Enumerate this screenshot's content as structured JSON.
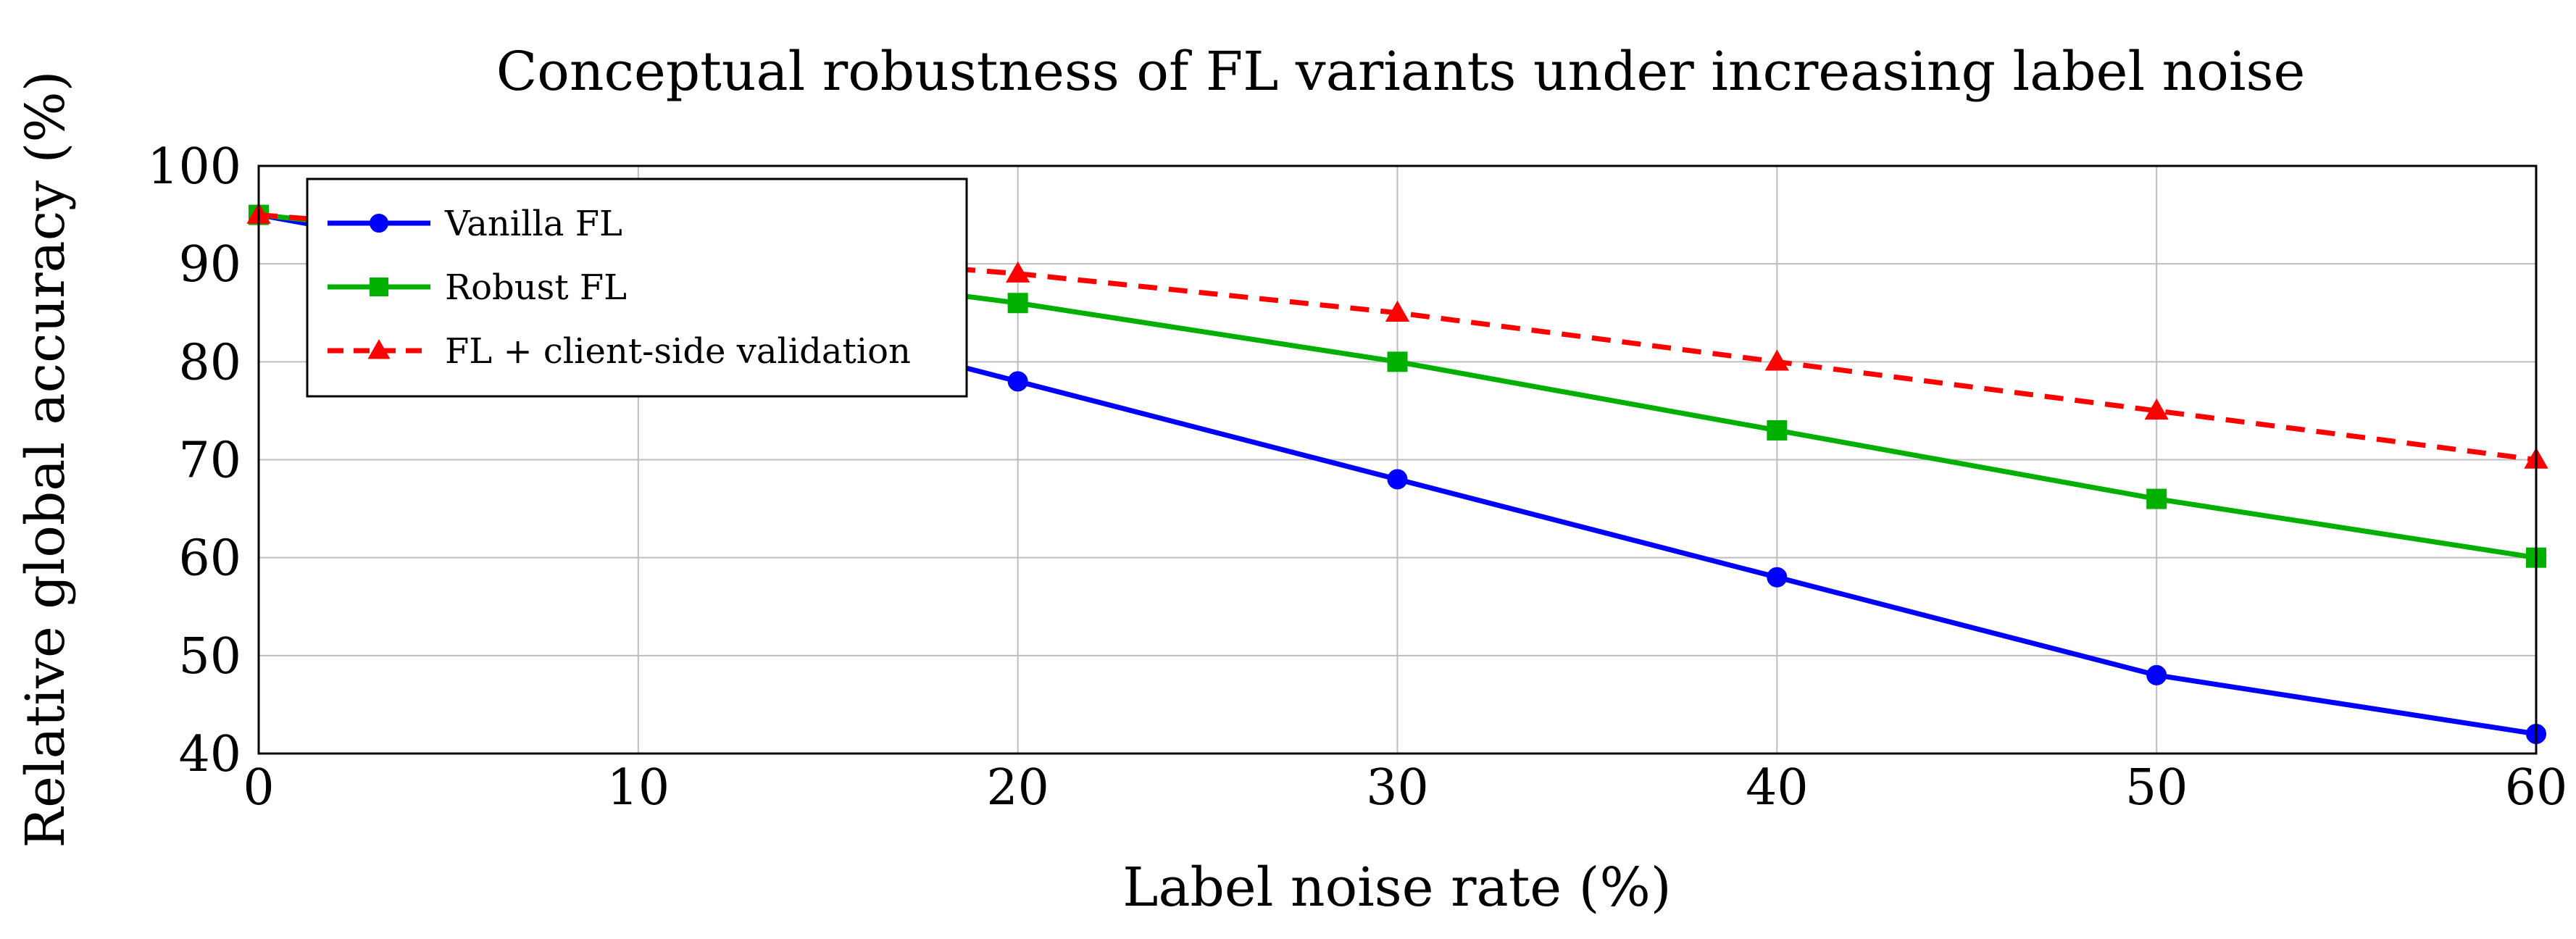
{
  "chart_data": {
    "type": "line",
    "title": "Conceptual robustness of FL variants under increasing label noise",
    "xlabel": "Label noise rate (%)",
    "ylabel": "Relative global accuracy (%)",
    "xlim": [
      0,
      60
    ],
    "ylim": [
      40,
      100
    ],
    "xticks": [
      0,
      10,
      20,
      30,
      40,
      50,
      60
    ],
    "yticks": [
      40,
      50,
      60,
      70,
      80,
      90,
      100
    ],
    "grid": true,
    "legend_position": "top-left",
    "x": [
      0,
      10,
      20,
      30,
      40,
      50,
      60
    ],
    "series": [
      {
        "name": "Vanilla FL",
        "color": "#0000ff",
        "marker": "circle",
        "dash": "solid",
        "values": [
          95,
          88,
          78,
          68,
          58,
          48,
          42
        ]
      },
      {
        "name": "Robust FL",
        "color": "#00b000",
        "marker": "square",
        "dash": "solid",
        "values": [
          95,
          91,
          86,
          80,
          73,
          66,
          60
        ]
      },
      {
        "name": "FL + client-side validation",
        "color": "#ff0000",
        "marker": "triangle",
        "dash": "dashed",
        "values": [
          95,
          92,
          89,
          85,
          80,
          75,
          70
        ]
      }
    ]
  }
}
